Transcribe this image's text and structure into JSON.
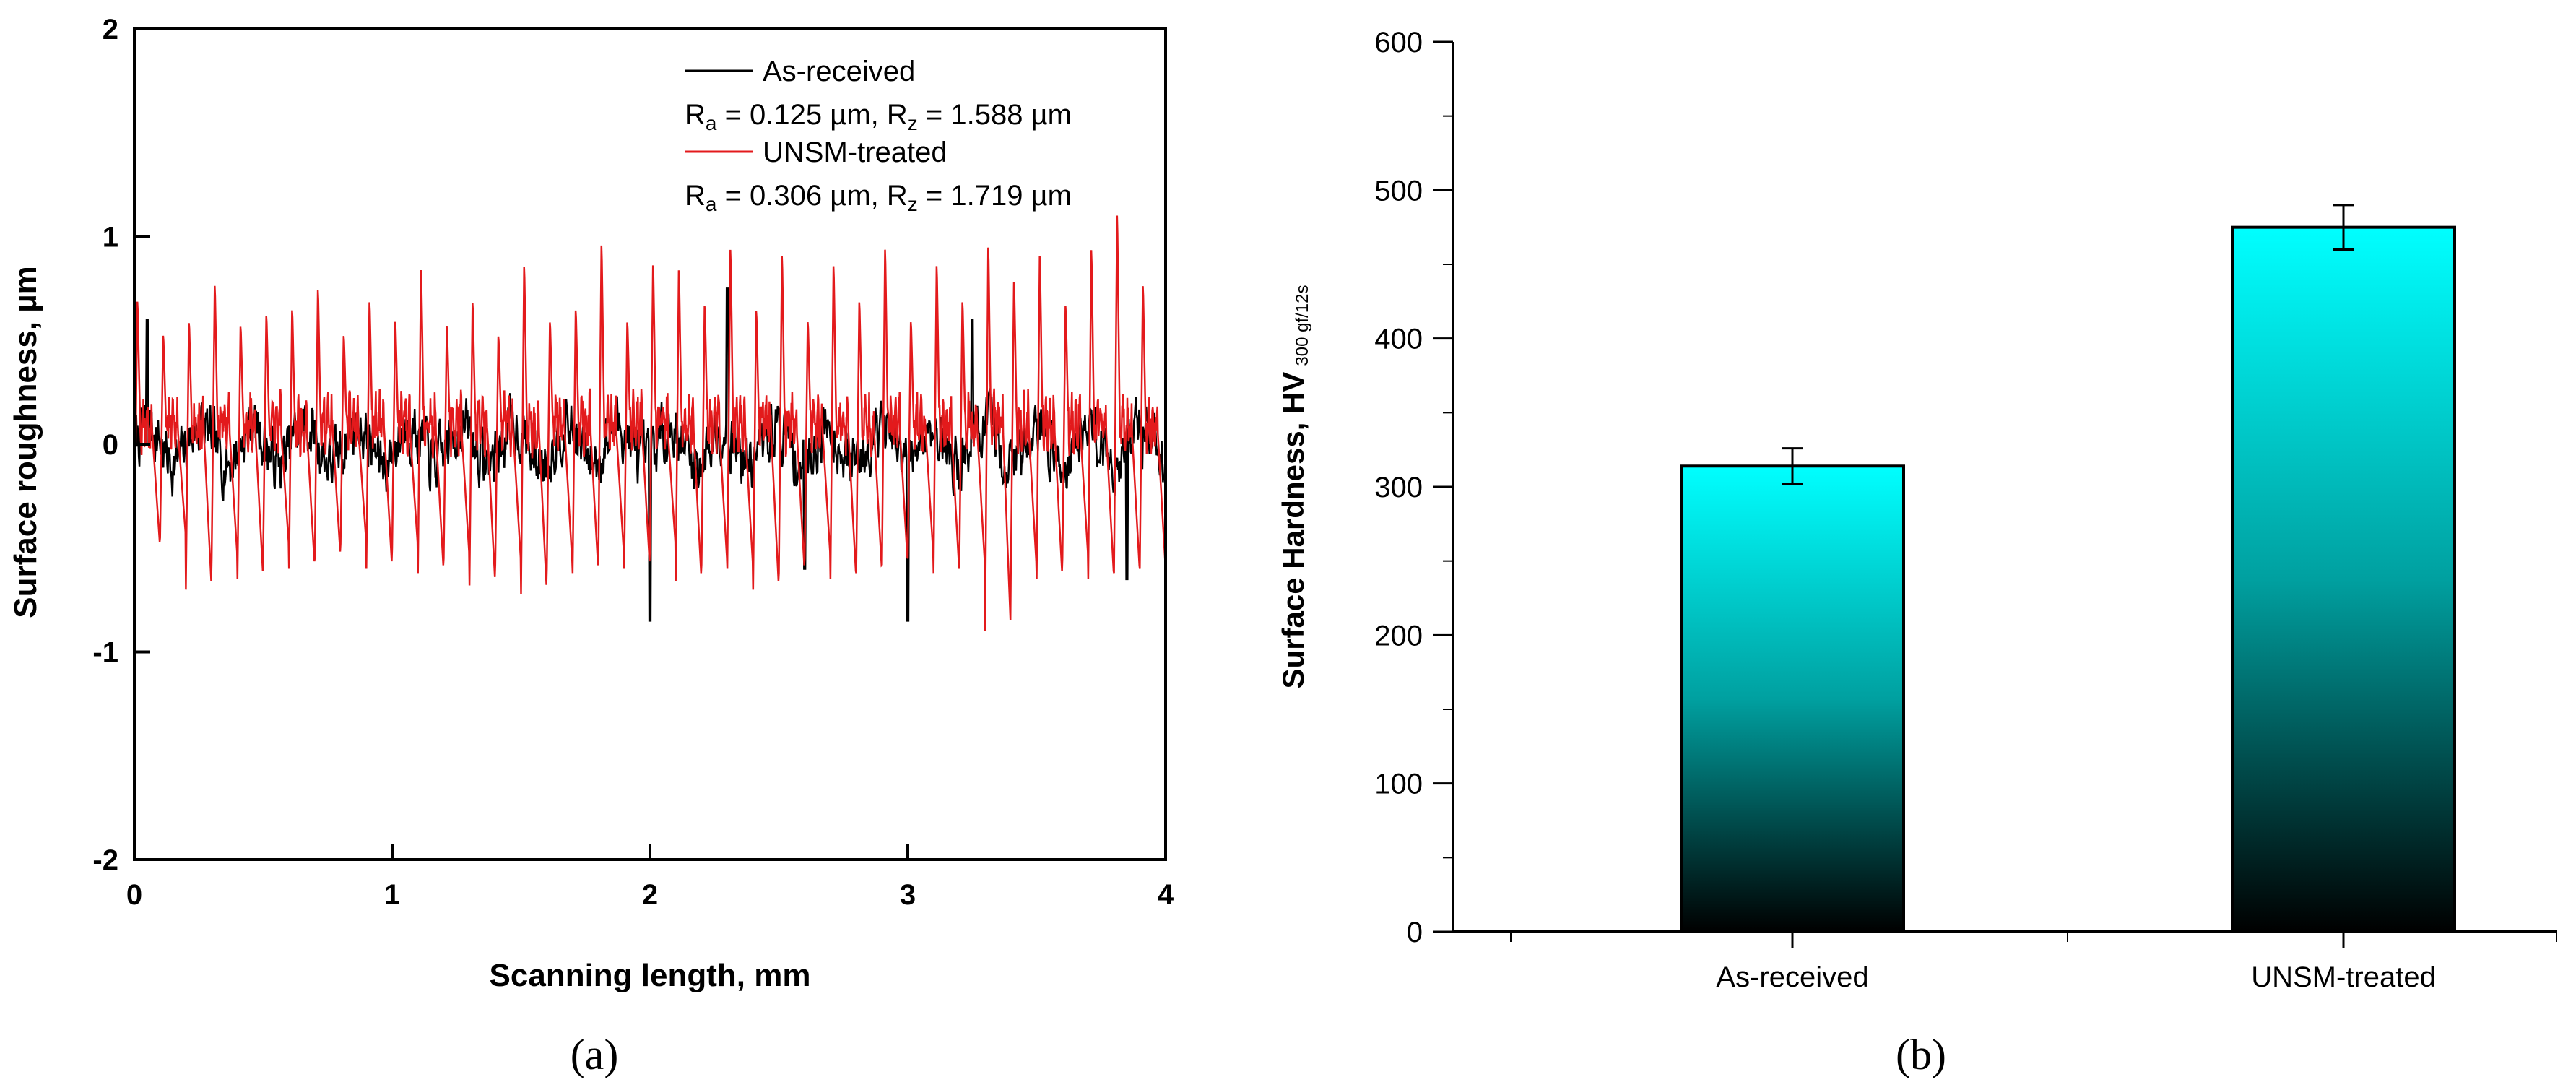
{
  "chart_data": [
    {
      "id": "a",
      "type": "line",
      "panel_label": "(a)",
      "xlabel": "Scanning length, mm",
      "ylabel": "Surface roughness, µm",
      "xlim": [
        0,
        4
      ],
      "ylim": [
        -2,
        2
      ],
      "xticks": [
        "0",
        "1",
        "2",
        "3",
        "4"
      ],
      "yticks": [
        "-2",
        "-1",
        "0",
        "1",
        "2"
      ],
      "legend": {
        "position": "top-right",
        "entries": [
          {
            "name": "As-received",
            "color": "#000000",
            "stats": {
              "ra_label": "R",
              "ra_sub": "a",
              "ra_value": " = 0.125 µm, ",
              "rz_label": "R",
              "rz_sub": "z",
              "rz_value": " = 1.588 µm"
            }
          },
          {
            "name": "UNSM-treated",
            "color": "#e31a1c",
            "stats": {
              "ra_label": "R",
              "ra_sub": "a",
              "ra_value": " = 0.306 µm, ",
              "rz_label": "R",
              "rz_sub": "z",
              "rz_value": " = 1.719 µm"
            }
          }
        ]
      },
      "series": [
        {
          "name": "As-received",
          "color": "#000000",
          "Ra": 0.125,
          "Rz": 1.588,
          "x_start": 0,
          "x_end": 4,
          "noise_amplitude": 0.25,
          "peaks": [
            [
              0.05,
              0.6
            ],
            [
              2.3,
              0.75
            ],
            [
              3.25,
              0.6
            ]
          ],
          "valleys": [
            [
              2.0,
              -0.85
            ],
            [
              2.6,
              -0.6
            ],
            [
              3.0,
              -0.85
            ],
            [
              3.85,
              -0.65
            ]
          ],
          "points": 1600,
          "seed": 7
        },
        {
          "name": "UNSM-treated",
          "color": "#e31a1c",
          "Ra": 0.306,
          "Rz": 1.719,
          "x_start": 0,
          "x_end": 4,
          "period_mm": 0.1,
          "peak_values": [
            0.72,
            0.55,
            0.62,
            0.8,
            0.6,
            0.65,
            0.68,
            0.78,
            0.55,
            0.72,
            0.62,
            0.88,
            0.6,
            0.72,
            0.55,
            0.9,
            0.62,
            0.68,
            1.0,
            0.62,
            0.9,
            0.88,
            0.7,
            0.98,
            0.68,
            0.95,
            0.62,
            0.9,
            0.72,
            0.98,
            0.62,
            0.9,
            0.72,
            1.0,
            0.82,
            0.95,
            0.7,
            0.98,
            1.15,
            0.8
          ],
          "valley_values": [
            -0.5,
            -0.45,
            -0.7,
            -0.55,
            -0.65,
            -0.5,
            -0.6,
            -0.55,
            -0.48,
            -0.6,
            -0.5,
            -0.62,
            -0.55,
            -0.68,
            -0.58,
            -0.72,
            -0.6,
            -0.62,
            -0.55,
            -0.6,
            -0.5,
            -0.66,
            -0.58,
            -0.6,
            -0.7,
            -0.62,
            -0.55,
            -0.65,
            -0.62,
            -0.58,
            -0.55,
            -0.62,
            -0.6,
            -0.9,
            -0.6,
            -0.65,
            -0.55,
            -0.65,
            -0.62,
            -0.6
          ],
          "seed": 11
        }
      ]
    },
    {
      "id": "b",
      "type": "bar",
      "panel_label": "(b)",
      "ylabel": "Surface Hardness, HV",
      "ylabel_sub": "300 gf/12s",
      "ylim": [
        0,
        600
      ],
      "yticks": [
        "0",
        "100",
        "200",
        "300",
        "400",
        "500",
        "600"
      ],
      "categories": [
        "As-received",
        "UNSM-treated"
      ],
      "values": [
        314,
        475
      ],
      "errors": [
        12,
        15
      ],
      "bar_color_top": "#00ffff",
      "bar_color_bottom": "#000000"
    }
  ]
}
